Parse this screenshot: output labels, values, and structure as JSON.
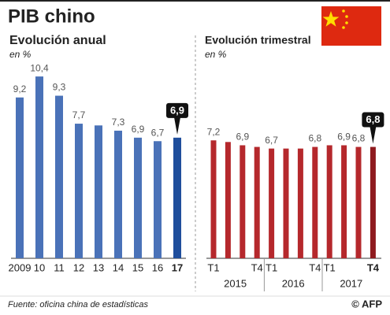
{
  "title": "PIB chino",
  "source": "Fuente: oficina china de estadísticas",
  "credit": "© AFP",
  "chart_data": [
    {
      "type": "bar",
      "title": "Evolución anual",
      "subtitle": "en %",
      "categories": [
        "2009",
        "10",
        "11",
        "12",
        "13",
        "14",
        "15",
        "16",
        "17"
      ],
      "values": [
        9.2,
        10.4,
        9.3,
        7.7,
        7.6,
        7.3,
        6.9,
        6.7,
        6.9
      ],
      "value_labels": [
        "9,2",
        "10,4",
        "9,3",
        "7,7",
        null,
        "7,3",
        "6,9",
        "6,7",
        "6,9"
      ],
      "color": "#4a72b8",
      "highlight_color": "#1f4e9c"
    },
    {
      "type": "bar",
      "title": "Evolución trimestral",
      "subtitle": "en %",
      "categories": [
        "T1",
        null,
        null,
        "T4",
        "T1",
        null,
        null,
        "T4",
        "T1",
        null,
        null,
        "T4"
      ],
      "groups": [
        "2015",
        "2016",
        "2017"
      ],
      "values": [
        7.2,
        7.1,
        6.9,
        6.8,
        6.7,
        6.7,
        6.7,
        6.8,
        6.9,
        6.9,
        6.8,
        6.8
      ],
      "value_labels": [
        "7,2",
        null,
        "6,9",
        null,
        "6,7",
        null,
        null,
        "6,8",
        null,
        "6,9",
        "6,8",
        "6,8"
      ],
      "color": "#b5282c",
      "highlight_color": "#8e1a1e"
    }
  ]
}
